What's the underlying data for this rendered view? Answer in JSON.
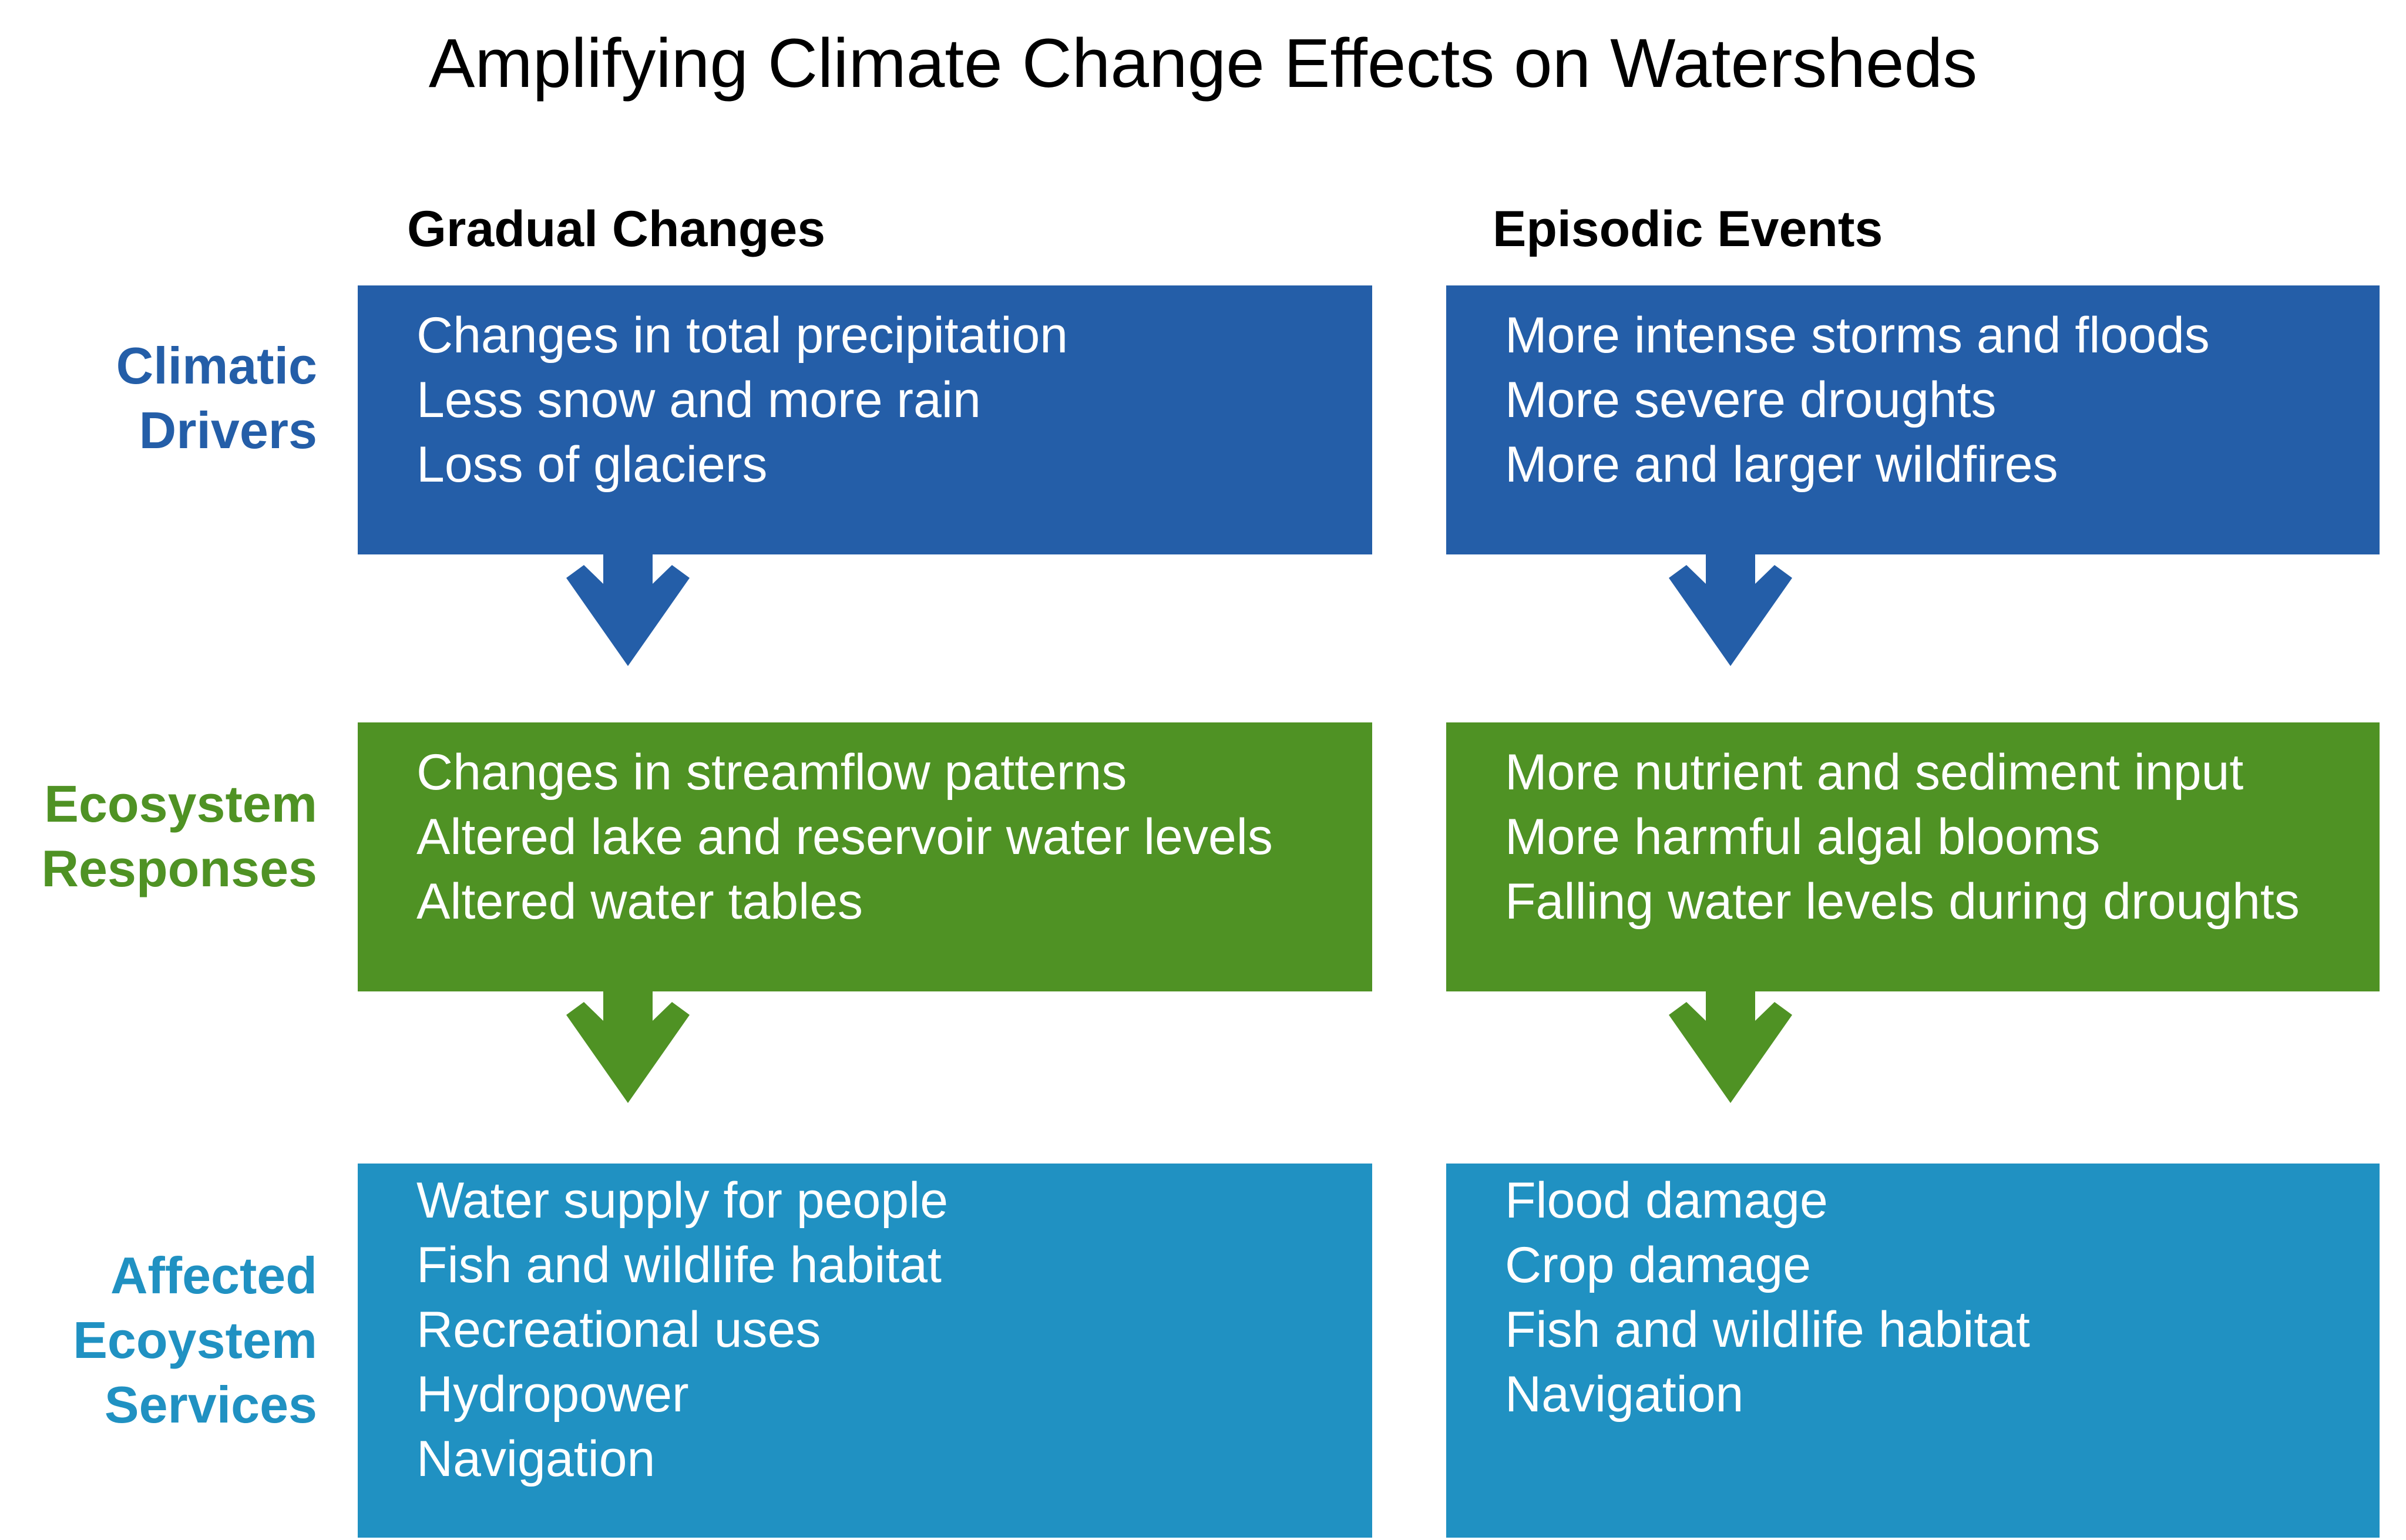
{
  "title": "Amplifying Climate Change Effects on Watersheds",
  "columns": {
    "gradual": "Gradual Changes",
    "episodic": "Episodic Events"
  },
  "colors": {
    "drivers": "#245ea8",
    "responses": "#4f9224",
    "services": "#2091c2"
  },
  "rows": [
    {
      "label_lines": [
        "Climatic",
        "Drivers"
      ],
      "gradual": [
        "Changes in total precipitation",
        "Less snow and more rain",
        "Loss of glaciers"
      ],
      "episodic": [
        "More intense storms and floods",
        "More severe droughts",
        "More and larger wildfires"
      ]
    },
    {
      "label_lines": [
        "Ecosystem",
        "Responses"
      ],
      "gradual": [
        "Changes in streamflow patterns",
        "Altered lake and reservoir water levels",
        "Altered water tables"
      ],
      "episodic": [
        "More nutrient and sediment input",
        "More harmful algal blooms",
        "Falling water levels during droughts"
      ]
    },
    {
      "label_lines": [
        "Affected",
        "Ecoystem",
        "Services"
      ],
      "gradual": [
        "Water supply for people",
        "Fish and wildlife habitat",
        "Recreational uses",
        "Hydropower",
        "Navigation"
      ],
      "episodic": [
        "Flood damage",
        "Crop damage",
        "Fish and wildlife habitat",
        "Navigation"
      ]
    }
  ]
}
